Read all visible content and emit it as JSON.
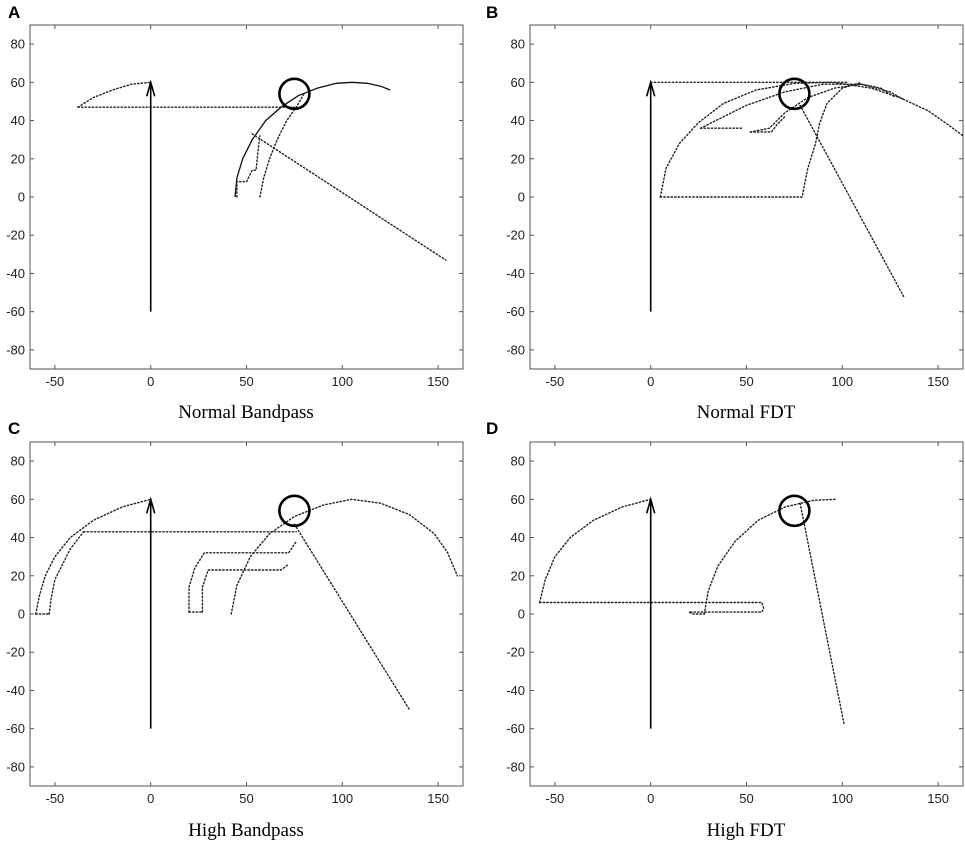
{
  "chart_data": [
    {
      "panel": "A",
      "title": "Normal Bandpass",
      "type": "line",
      "xlim": [
        -63,
        163
      ],
      "ylim": [
        -90,
        90
      ],
      "xticks": [
        -50,
        0,
        50,
        100,
        150
      ],
      "yticks": [
        80,
        60,
        40,
        20,
        0,
        -20,
        -40,
        -60,
        -80
      ],
      "arrow": {
        "x": 0,
        "y_from": -60,
        "y_to": 60
      },
      "circle": {
        "x": 75,
        "y": 54
      },
      "series": [
        {
          "name": "arc-left",
          "style": "dotted",
          "points": [
            [
              -38,
              47
            ],
            [
              -30,
              52
            ],
            [
              -20,
              56
            ],
            [
              -10,
              59
            ],
            [
              0,
              60
            ]
          ]
        },
        {
          "name": "horizontal-link",
          "style": "dotted",
          "points": [
            [
              -38,
              47
            ],
            [
              75,
              47
            ]
          ]
        },
        {
          "name": "arc-right-solid",
          "style": "solid",
          "points": [
            [
              44,
              0
            ],
            [
              45,
              10
            ],
            [
              48,
              20
            ],
            [
              53,
              30
            ],
            [
              60,
              40
            ],
            [
              68,
              47
            ],
            [
              77,
              53
            ],
            [
              87,
              57
            ],
            [
              97,
              59.5
            ],
            [
              105,
              60
            ],
            [
              113,
              59.5
            ],
            [
              120,
              58
            ],
            [
              125,
              56
            ]
          ]
        },
        {
          "name": "inner-arc",
          "style": "dotted",
          "points": [
            [
              57,
              0
            ],
            [
              59,
              10
            ],
            [
              62,
              20
            ],
            [
              66,
              30
            ],
            [
              71,
              40
            ],
            [
              76,
              47
            ],
            [
              80,
              54
            ]
          ]
        },
        {
          "name": "steps",
          "style": "dotted",
          "points": [
            [
              45,
              0
            ],
            [
              45,
              8
            ],
            [
              50,
              8
            ],
            [
              53,
              14
            ],
            [
              55,
              14
            ],
            [
              56,
              24
            ],
            [
              57,
              32
            ]
          ]
        },
        {
          "name": "diagonal",
          "style": "dotted",
          "points": [
            [
              53,
              33
            ],
            [
              154,
              -33
            ]
          ]
        }
      ]
    },
    {
      "panel": "B",
      "title": "Normal FDT",
      "type": "line",
      "xlim": [
        -63,
        163
      ],
      "ylim": [
        -90,
        90
      ],
      "xticks": [
        -50,
        0,
        50,
        100,
        150
      ],
      "yticks": [
        80,
        60,
        40,
        20,
        0,
        -20,
        -40,
        -60,
        -80
      ],
      "arrow": {
        "x": 0,
        "y_from": -60,
        "y_to": 60
      },
      "circle": {
        "x": 75,
        "y": 54
      },
      "series": [
        {
          "name": "top-line",
          "style": "dotted",
          "points": [
            [
              0,
              60
            ],
            [
              103,
              60
            ]
          ]
        },
        {
          "name": "big-arc",
          "style": "dotted",
          "points": [
            [
              5,
              0
            ],
            [
              8,
              15
            ],
            [
              15,
              28
            ],
            [
              25,
              39
            ],
            [
              38,
              49
            ],
            [
              55,
              56
            ],
            [
              75,
              59.5
            ],
            [
              95,
              60
            ],
            [
              115,
              57
            ],
            [
              130,
              52
            ],
            [
              145,
              45
            ],
            [
              155,
              38
            ],
            [
              163,
              32
            ]
          ]
        },
        {
          "name": "bottom-box",
          "style": "dotted",
          "points": [
            [
              5,
              0
            ],
            [
              79,
              0
            ],
            [
              82,
              15
            ],
            [
              86,
              28
            ],
            [
              88,
              38
            ],
            [
              92,
              49
            ],
            [
              100,
              57
            ],
            [
              110,
              60
            ]
          ]
        },
        {
          "name": "mid-arc",
          "style": "dotted",
          "points": [
            [
              26,
              36
            ],
            [
              50,
              48
            ],
            [
              70,
              55
            ],
            [
              90,
              59
            ],
            [
              110,
              59
            ],
            [
              125,
              55
            ],
            [
              132,
              51
            ]
          ]
        },
        {
          "name": "mid-box",
          "style": "dotted",
          "points": [
            [
              26,
              36
            ],
            [
              36,
              36
            ],
            [
              48,
              36
            ]
          ]
        },
        {
          "name": "inner-arc",
          "style": "dotted",
          "points": [
            [
              52,
              34
            ],
            [
              62,
              36
            ],
            [
              70,
              44
            ],
            [
              82,
              52
            ],
            [
              96,
              57
            ],
            [
              110,
              59
            ],
            [
              120,
              57
            ],
            [
              128,
              52
            ]
          ]
        },
        {
          "name": "inner-steps",
          "style": "dotted",
          "points": [
            [
              52,
              34
            ],
            [
              63,
              34
            ],
            [
              66,
              38
            ],
            [
              70,
              42
            ]
          ]
        },
        {
          "name": "diagonal",
          "style": "dotted",
          "points": [
            [
              78,
              48
            ],
            [
              132,
              -52
            ]
          ]
        }
      ]
    },
    {
      "panel": "C",
      "title": "High Bandpass",
      "type": "line",
      "xlim": [
        -63,
        163
      ],
      "ylim": [
        -90,
        90
      ],
      "xticks": [
        -50,
        0,
        50,
        100,
        150
      ],
      "yticks": [
        80,
        60,
        40,
        20,
        0,
        -20,
        -40,
        -60,
        -80
      ],
      "arrow": {
        "x": 0,
        "y_from": -60,
        "y_to": 60
      },
      "circle": {
        "x": 75,
        "y": 54
      },
      "series": [
        {
          "name": "outer-arc-left",
          "style": "dotted",
          "points": [
            [
              -60,
              0
            ],
            [
              -58,
              10
            ],
            [
              -55,
              20
            ],
            [
              -50,
              30
            ],
            [
              -42,
              40
            ],
            [
              -30,
              49
            ],
            [
              -15,
              56
            ],
            [
              0,
              60
            ]
          ]
        },
        {
          "name": "inner-arc-left",
          "style": "dotted",
          "points": [
            [
              -53,
              0
            ],
            [
              -52,
              8
            ],
            [
              -50,
              18
            ],
            [
              -46,
              26
            ],
            [
              -42,
              34
            ],
            [
              -35,
              43
            ]
          ]
        },
        {
          "name": "base-left",
          "style": "dotted",
          "points": [
            [
              -60,
              0
            ],
            [
              -53,
              0
            ]
          ]
        },
        {
          "name": "horizontal-link",
          "style": "dotted",
          "points": [
            [
              -35,
              43
            ],
            [
              76,
              43
            ]
          ]
        },
        {
          "name": "box-outer",
          "style": "dotted",
          "points": [
            [
              20,
              1
            ],
            [
              20,
              14
            ],
            [
              23,
              24
            ],
            [
              28,
              32
            ],
            [
              72,
              32
            ],
            [
              76,
              38
            ]
          ]
        },
        {
          "name": "box-inner",
          "style": "dotted",
          "points": [
            [
              27,
              1
            ],
            [
              27,
              14
            ],
            [
              30,
              23
            ],
            [
              68,
              23
            ],
            [
              72,
              26
            ]
          ]
        },
        {
          "name": "box-base",
          "style": "dotted",
          "points": [
            [
              20,
              1
            ],
            [
              27,
              1
            ]
          ]
        },
        {
          "name": "big-arc",
          "style": "dotted",
          "points": [
            [
              42,
              0
            ],
            [
              45,
              15
            ],
            [
              52,
              30
            ],
            [
              62,
              42
            ],
            [
              75,
              51
            ],
            [
              90,
              57
            ],
            [
              105,
              60
            ],
            [
              120,
              58
            ],
            [
              135,
              52
            ],
            [
              148,
              42
            ],
            [
              155,
              32
            ],
            [
              160,
              20
            ]
          ]
        },
        {
          "name": "diagonal",
          "style": "dotted",
          "points": [
            [
              75,
              47
            ],
            [
              135,
              -50
            ]
          ]
        }
      ]
    },
    {
      "panel": "D",
      "title": "High FDT",
      "type": "line",
      "xlim": [
        -63,
        163
      ],
      "ylim": [
        -90,
        90
      ],
      "xticks": [
        -50,
        0,
        50,
        100,
        150
      ],
      "yticks": [
        80,
        60,
        40,
        20,
        0,
        -20,
        -40,
        -60,
        -80
      ],
      "arrow": {
        "x": 0,
        "y_from": -60,
        "y_to": 60
      },
      "circle": {
        "x": 75,
        "y": 54
      },
      "series": [
        {
          "name": "left-arc",
          "style": "dotted",
          "points": [
            [
              -58,
              6
            ],
            [
              -55,
              18
            ],
            [
              -50,
              30
            ],
            [
              -42,
              40
            ],
            [
              -30,
              49
            ],
            [
              -15,
              56
            ],
            [
              0,
              60
            ]
          ]
        },
        {
          "name": "long-box",
          "style": "dotted",
          "points": [
            [
              -58,
              6
            ],
            [
              58,
              6
            ],
            [
              59,
              3
            ],
            [
              58,
              1
            ],
            [
              20,
              1
            ],
            [
              22,
              0
            ],
            [
              28,
              0
            ]
          ]
        },
        {
          "name": "right-arc",
          "style": "dotted",
          "points": [
            [
              28,
              0
            ],
            [
              30,
              12
            ],
            [
              35,
              25
            ],
            [
              44,
              38
            ],
            [
              56,
              49
            ],
            [
              70,
              56
            ],
            [
              85,
              59.5
            ],
            [
              97,
              60
            ]
          ]
        },
        {
          "name": "diagonal",
          "style": "dotted",
          "points": [
            [
              78,
              58
            ],
            [
              101,
              -58
            ]
          ]
        }
      ]
    }
  ]
}
